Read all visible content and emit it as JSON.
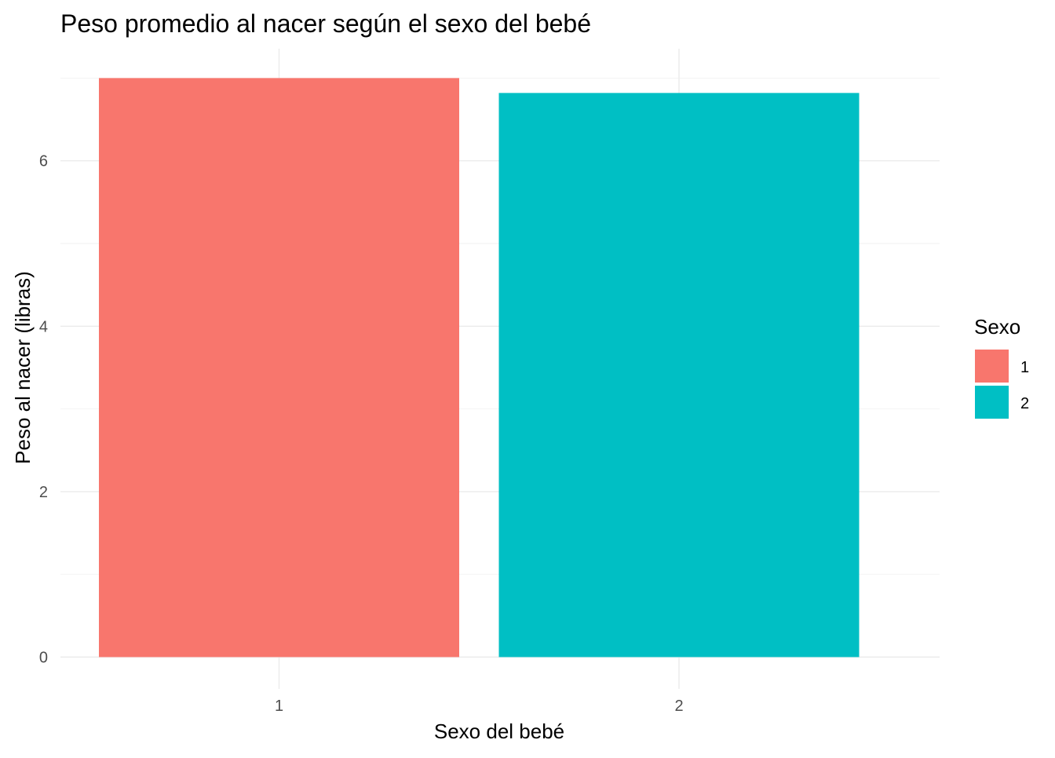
{
  "chart_data": {
    "type": "bar",
    "title": "Peso promedio al nacer según el sexo del bebé",
    "xlabel": "Sexo del bebé",
    "ylabel": "Peso al nacer (libras)",
    "categories": [
      "1",
      "2"
    ],
    "values": [
      7.0,
      6.82
    ],
    "colors": [
      "#F8766D",
      "#00BFC4"
    ],
    "ylim": [
      0,
      7.0
    ],
    "yticks": [
      0,
      2,
      4,
      6
    ],
    "yminor": [
      1,
      3,
      5,
      7
    ],
    "grid": true,
    "legend": {
      "title": "Sexo",
      "placement": "right",
      "items": [
        {
          "label": "1",
          "color": "#F8766D"
        },
        {
          "label": "2",
          "color": "#00BFC4"
        }
      ]
    }
  }
}
